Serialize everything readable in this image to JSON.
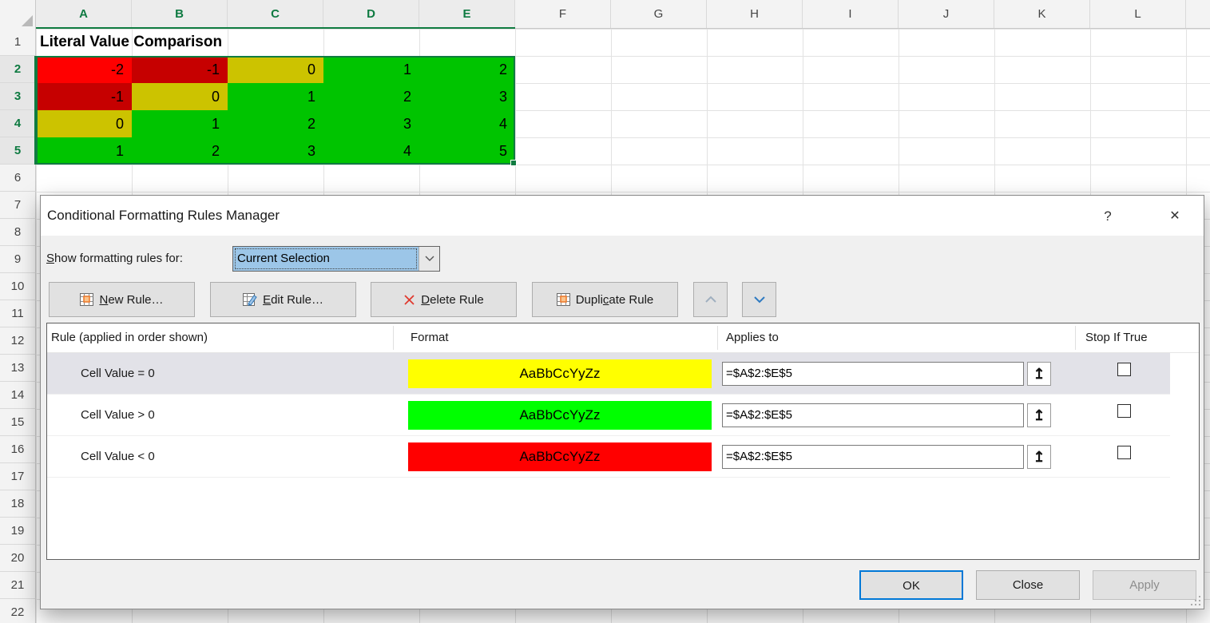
{
  "sheet": {
    "columns": [
      "A",
      "B",
      "C",
      "D",
      "E",
      "F",
      "G",
      "H",
      "I",
      "J",
      "K",
      "L"
    ],
    "selected_columns": [
      "A",
      "B",
      "C",
      "D",
      "E"
    ],
    "row_numbers": [
      1,
      2,
      3,
      4,
      5,
      6,
      7,
      8,
      9,
      10,
      11,
      12,
      13,
      14,
      15,
      16,
      17,
      18,
      19,
      20,
      21,
      22
    ],
    "selected_rows": [
      2,
      3,
      4,
      5
    ],
    "title_cell": "Literal Value Comparison",
    "cell_colors": {
      "activeRed": "#FF0000",
      "red": "#C60000",
      "yellow": "#CCC300",
      "green": "#00C400"
    },
    "cells": [
      [
        {
          "v": "-2",
          "k": "activeRed"
        },
        {
          "v": "-1",
          "k": "red"
        },
        {
          "v": "0",
          "k": "yellow"
        },
        {
          "v": "1",
          "k": "green"
        },
        {
          "v": "2",
          "k": "green"
        }
      ],
      [
        {
          "v": "-1",
          "k": "red"
        },
        {
          "v": "0",
          "k": "yellow"
        },
        {
          "v": "1",
          "k": "green"
        },
        {
          "v": "2",
          "k": "green"
        },
        {
          "v": "3",
          "k": "green"
        }
      ],
      [
        {
          "v": "0",
          "k": "yellow"
        },
        {
          "v": "1",
          "k": "green"
        },
        {
          "v": "2",
          "k": "green"
        },
        {
          "v": "3",
          "k": "green"
        },
        {
          "v": "4",
          "k": "green"
        }
      ],
      [
        {
          "v": "1",
          "k": "green"
        },
        {
          "v": "2",
          "k": "green"
        },
        {
          "v": "3",
          "k": "green"
        },
        {
          "v": "4",
          "k": "green"
        },
        {
          "v": "5",
          "k": "green"
        }
      ]
    ]
  },
  "dialog": {
    "title": "Conditional Formatting Rules Manager",
    "help_glyph": "?",
    "close_glyph": "✕",
    "show_rules_label": {
      "pre": "",
      "u": "S",
      "post": "how formatting rules for:"
    },
    "show_rules_value": "Current Selection",
    "toolbar": {
      "new_rule": {
        "pre": "",
        "u": "N",
        "post": "ew Rule…"
      },
      "edit_rule": {
        "pre": "",
        "u": "E",
        "post": "dit Rule…"
      },
      "delete_rule": {
        "pre": "",
        "u": "D",
        "post": "elete Rule"
      },
      "duplicate_rule": {
        "pre": "Dupli",
        "u": "c",
        "post": "ate Rule"
      }
    },
    "table": {
      "headers": {
        "rule": "Rule (applied in order shown)",
        "format": "Format",
        "applies": "Applies to",
        "stop": "Stop If True"
      },
      "rules": [
        {
          "condition": "Cell Value = 0",
          "preview": "AaBbCcYyZz",
          "fill": "#FFFF00",
          "text_color": "#000000",
          "applies_to": "=$A$2:$E$5",
          "stop_if_true": "unchecked",
          "selected": "true"
        },
        {
          "condition": "Cell Value > 0",
          "preview": "AaBbCcYyZz",
          "fill": "#00FF00",
          "text_color": "#000000",
          "applies_to": "=$A$2:$E$5",
          "stop_if_true": "unchecked",
          "selected": "false"
        },
        {
          "condition": "Cell Value < 0",
          "preview": "AaBbCcYyZz",
          "fill": "#FF0000",
          "text_color": "#000000",
          "applies_to": "=$A$2:$E$5",
          "stop_if_true": "unchecked",
          "selected": "false"
        }
      ]
    },
    "footer": {
      "ok": "OK",
      "close": "Close",
      "apply": "Apply"
    },
    "icons": {
      "range_picker": "↥"
    },
    "accent_colors": {
      "focus_blue": "#0078D7",
      "selection_green": "#107C41",
      "combo_highlight": "#9CC6E8"
    }
  }
}
